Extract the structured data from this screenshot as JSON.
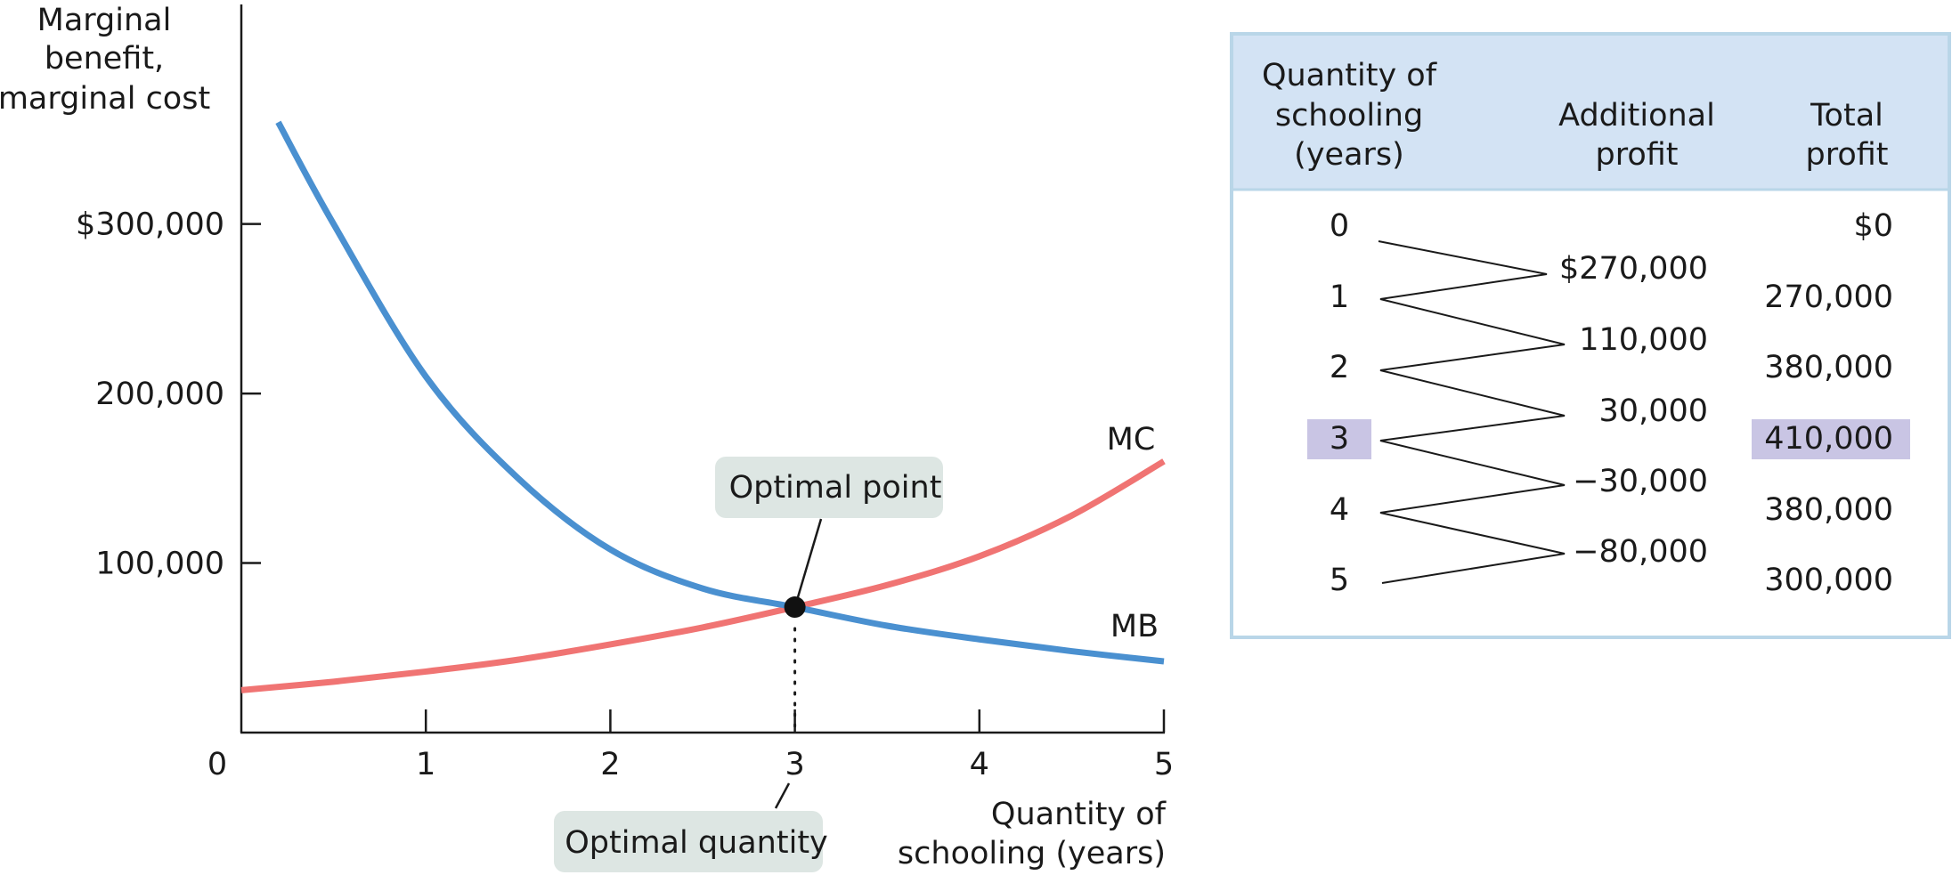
{
  "chart_data": {
    "type": "line",
    "ylabel_lines": [
      "Marginal",
      "benefit,",
      "marginal cost"
    ],
    "xlabel_lines": [
      "Quantity of",
      "schooling (years)"
    ],
    "xlim": [
      0,
      5
    ],
    "ylim": [
      0,
      430000
    ],
    "x_ticks": [
      0,
      1,
      2,
      3,
      4,
      5
    ],
    "x_tick_labels": [
      "0",
      "1",
      "2",
      "3",
      "4",
      "5"
    ],
    "y_ticks": [
      100000,
      200000,
      300000
    ],
    "y_tick_labels": [
      "100,000",
      "200,000",
      "$300,000"
    ],
    "series": [
      {
        "name": "MC",
        "color": "#f07473",
        "x": [
          0,
          0.5,
          1,
          1.5,
          2,
          2.5,
          3,
          3.5,
          4,
          4.5,
          5
        ],
        "y": [
          25000,
          30000,
          36000,
          43000,
          52000,
          62000,
          74000,
          87000,
          104000,
          128000,
          160000
        ]
      },
      {
        "name": "MB",
        "color": "#4a90d0",
        "x": [
          0.2,
          0.5,
          1,
          1.5,
          2,
          2.5,
          3,
          3.5,
          4,
          4.5,
          5
        ],
        "y": [
          360000,
          300000,
          210000,
          150000,
          108000,
          85000,
          74000,
          63000,
          55000,
          48000,
          42000
        ]
      }
    ],
    "optimal_point": {
      "x": 3,
      "y": 74000
    },
    "annotations": {
      "optimal_point": "Optimal point",
      "optimal_quantity": "Optimal quantity"
    }
  },
  "table": {
    "headers": {
      "quantity": [
        "Quantity of",
        "schooling",
        "(years)"
      ],
      "additional": [
        "Additional",
        "profit"
      ],
      "total": [
        "Total",
        "profit"
      ]
    },
    "quantities": [
      "0",
      "1",
      "2",
      "3",
      "4",
      "5"
    ],
    "additional_profit": [
      "$270,000",
      "110,000",
      "30,000",
      "−30,000",
      "−80,000"
    ],
    "total_profit": [
      "$0",
      "270,000",
      "380,000",
      "410,000",
      "380,000",
      "300,000"
    ],
    "highlight_row": 3,
    "colors": {
      "header_bg": "#d3e3f4",
      "border": "#b9d6e8",
      "highlight": "#c9c5e4",
      "callout_bg": "#dde6e3"
    }
  }
}
